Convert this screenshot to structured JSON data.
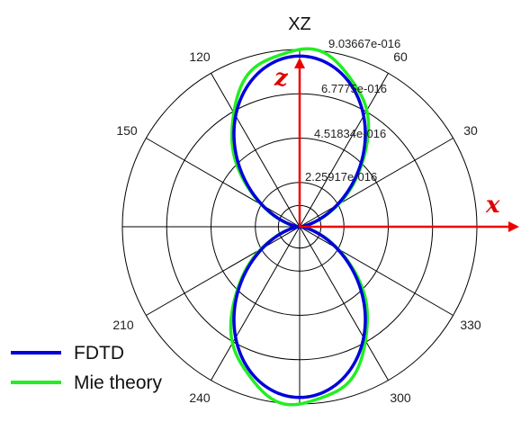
{
  "chart_data": {
    "type": "polar",
    "title": "XZ",
    "angle_ticks": [
      "30",
      "60",
      "120",
      "150",
      "210",
      "240",
      "300",
      "330"
    ],
    "radial_tick_labels": [
      "2.25917e-016",
      "4.51834e-016",
      "6.7775e-016",
      "9.03667e-016"
    ],
    "radial_max": 9.03667e-16,
    "grid": true,
    "axis_arrows": {
      "x": "x",
      "z": "z"
    },
    "legend_position": "bottom-left",
    "series": [
      {
        "name": "FDTD",
        "color": "#0000dd",
        "pattern": "cos^2 dipole lobes along 90/270",
        "peak": 8.7e-16
      },
      {
        "name": "Mie theory",
        "color": "#22ee22",
        "pattern": "cos^2 dipole lobes along 90/270",
        "peak": 9.03667e-16
      }
    ]
  }
}
